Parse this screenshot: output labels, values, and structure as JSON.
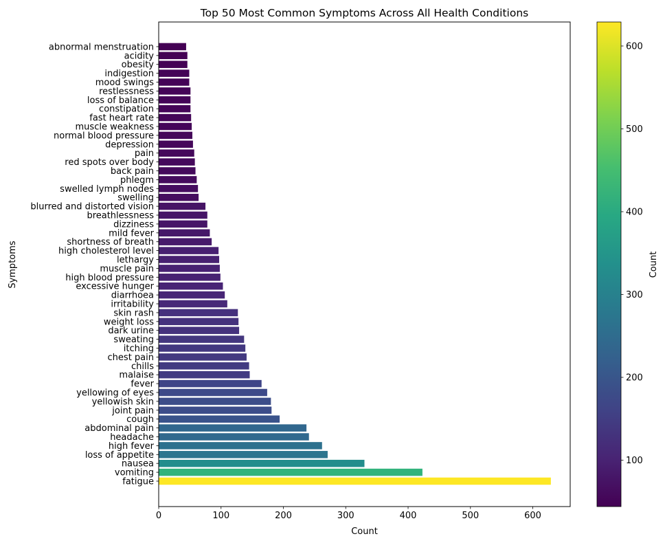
{
  "chart_data": {
    "type": "bar",
    "orientation": "horizontal",
    "title": "Top 50 Most Common Symptoms Across All Health Conditions",
    "xlabel": "Count",
    "ylabel": "Symptoms",
    "xlim": [
      0,
      660
    ],
    "xticks": [
      0,
      100,
      200,
      300,
      400,
      500,
      600
    ],
    "grid": false,
    "colormap": "viridis",
    "colorbar": {
      "label": "Count",
      "range": [
        44,
        629
      ],
      "ticks": [
        100,
        200,
        300,
        400,
        500,
        600
      ]
    },
    "categories": [
      "fatigue",
      "vomiting",
      "nausea",
      "loss of appetite",
      "high fever",
      "headache",
      "abdominal pain",
      "cough",
      "joint pain",
      "yellowish skin",
      "yellowing of eyes",
      "fever",
      "malaise",
      "chills",
      "chest pain",
      "itching",
      "sweating",
      "dark urine",
      "weight loss",
      "skin rash",
      "irritability",
      "diarrhoea",
      "excessive hunger",
      "high blood pressure",
      "muscle pain",
      "lethargy",
      "high cholesterol level",
      "shortness of breath",
      "mild fever",
      "dizziness",
      "breathlessness",
      "blurred and distorted vision",
      "swelling",
      "swelled lymph nodes",
      "phlegm",
      "back pain",
      "red spots over body",
      "pain",
      "depression",
      "normal blood pressure",
      "muscle weakness",
      "fast heart rate",
      "constipation",
      "loss of balance",
      "restlessness",
      "mood swings",
      "indigestion",
      "obesity",
      "acidity",
      "abnormal menstruation"
    ],
    "values": [
      629,
      423,
      330,
      271,
      262,
      241,
      237,
      194,
      181,
      180,
      174,
      165,
      146,
      145,
      141,
      139,
      137,
      129,
      128,
      127,
      110,
      106,
      103,
      99,
      98,
      97,
      96,
      85,
      82,
      78,
      78,
      75,
      64,
      63,
      61,
      59,
      58,
      57,
      55,
      54,
      53,
      52,
      51,
      51,
      51,
      49,
      49,
      46,
      46,
      44
    ]
  }
}
